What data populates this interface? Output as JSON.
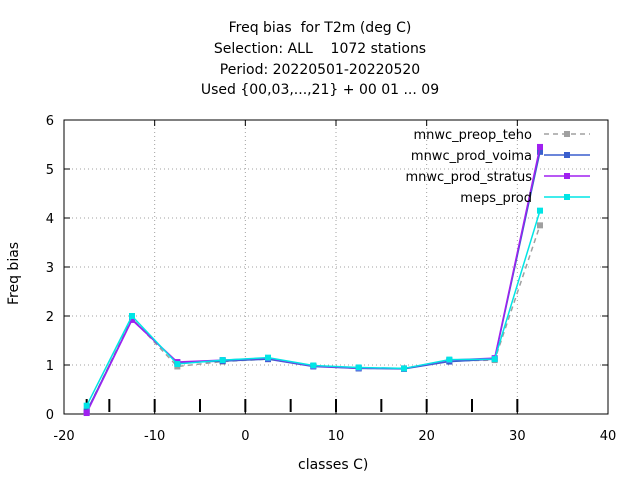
{
  "chart_data": {
    "type": "line",
    "title_lines": [
      "Freq bias  for T2m (deg C)",
      "Selection: ALL    1072 stations",
      "Period: 20220501-20220520",
      "Used {00,03,...,21} + 00 01 ... 09"
    ],
    "xlabel": "classes C)",
    "ylabel": "Freq bias",
    "xlim": [
      -20,
      40
    ],
    "ylim": [
      0,
      6
    ],
    "xticks": [
      -20,
      -10,
      0,
      10,
      20,
      30,
      40
    ],
    "yticks": [
      0,
      1,
      2,
      3,
      4,
      5,
      6
    ],
    "class_markers": [
      -17.5,
      -15,
      -10,
      -5,
      0,
      5,
      10,
      15,
      20,
      25,
      30
    ],
    "grid": true,
    "legend_position": "top-right",
    "x": [
      -17.5,
      -12.5,
      -7.5,
      -2.5,
      2.5,
      7.5,
      12.5,
      17.5,
      22.5,
      27.5,
      32.5
    ],
    "series": [
      {
        "name": "mnwc_preop_teho",
        "color": "#a0a0a0",
        "dashed": true,
        "values": [
          0.05,
          1.95,
          0.97,
          1.07,
          1.12,
          0.98,
          0.93,
          0.93,
          1.08,
          1.1,
          3.85
        ]
      },
      {
        "name": "mnwc_prod_voima",
        "color": "#3a5fcd",
        "dashed": false,
        "values": [
          0.05,
          1.93,
          1.05,
          1.08,
          1.12,
          0.97,
          0.93,
          0.92,
          1.07,
          1.12,
          5.35
        ]
      },
      {
        "name": "mnwc_prod_stratus",
        "color": "#a020f0",
        "dashed": false,
        "values": [
          0.02,
          1.92,
          1.06,
          1.1,
          1.14,
          0.98,
          0.94,
          0.93,
          1.1,
          1.14,
          5.45
        ]
      },
      {
        "name": "meps_prod",
        "color": "#00e5e5",
        "dashed": false,
        "values": [
          0.17,
          2.0,
          1.02,
          1.1,
          1.15,
          0.99,
          0.95,
          0.93,
          1.11,
          1.12,
          4.15
        ]
      }
    ]
  }
}
